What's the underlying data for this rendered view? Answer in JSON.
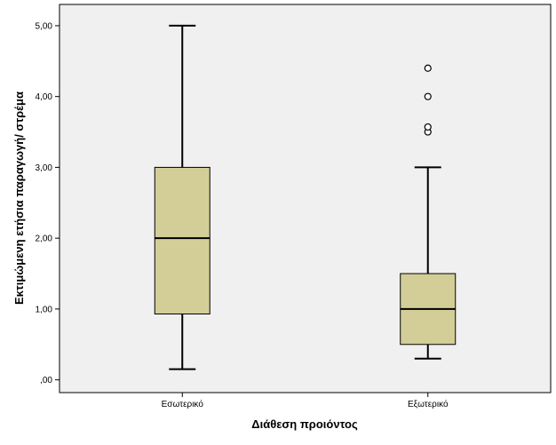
{
  "chart_data": {
    "type": "boxplot",
    "xlabel": "Διάθεση προιόντος",
    "ylabel": "Εκτιμώμενη ετήσια παραγωγή/ στρέμα",
    "ylim": [
      -0.18,
      5.3
    ],
    "yticks": [
      0,
      1,
      2,
      3,
      4,
      5
    ],
    "ytick_labels": [
      ",00",
      "1,00",
      "2,00",
      "3,00",
      "4,00",
      "5,00"
    ],
    "categories": [
      "Εσωτερικό",
      "Εξωτερικό"
    ],
    "boxes": [
      {
        "category": "Εσωτερικό",
        "whisker_low": 0.15,
        "q1": 0.93,
        "median": 2.0,
        "q3": 3.0,
        "whisker_high": 5.0,
        "outliers": []
      },
      {
        "category": "Εξωτερικό",
        "whisker_low": 0.3,
        "q1": 0.5,
        "median": 1.0,
        "q3": 1.5,
        "whisker_high": 3.0,
        "outliers": [
          3.5,
          3.57,
          4.0,
          4.4
        ]
      }
    ],
    "grid": false,
    "colors": {
      "box_fill": "#d3ce98",
      "plot_bg": "#f0f0f0",
      "outline": "#000000"
    }
  }
}
